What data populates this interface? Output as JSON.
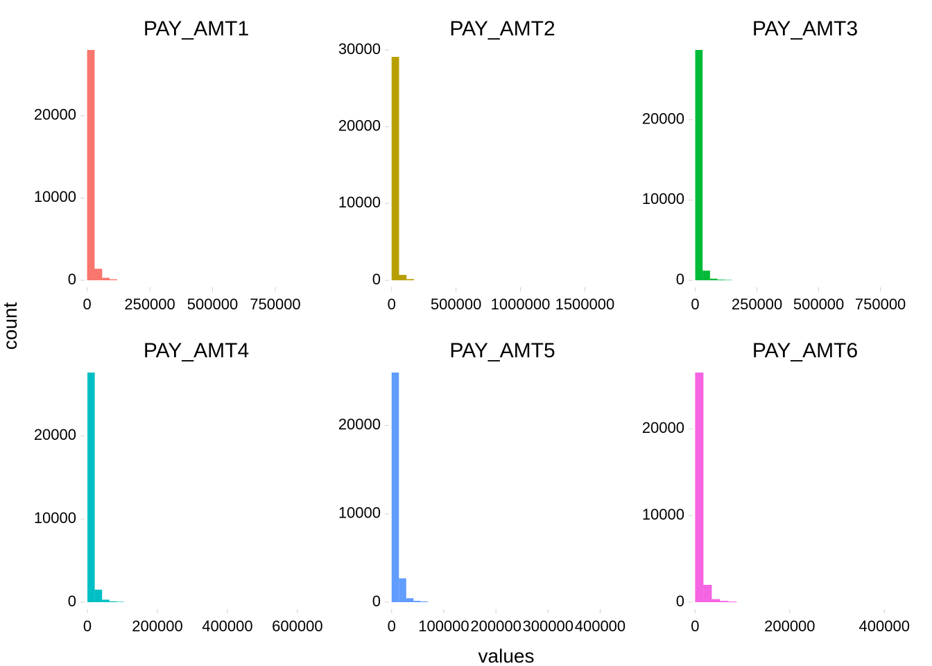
{
  "figure": {
    "xlabel": "values",
    "ylabel": "count"
  },
  "chart_data": [
    {
      "type": "bar",
      "title": "PAY_AMT1",
      "color": "#F8766D",
      "bin_width": 30000,
      "bins": [
        0,
        30000,
        60000,
        90000
      ],
      "counts": [
        28000,
        1400,
        300,
        120
      ],
      "xlim": [
        -10000,
        880000
      ],
      "ylim": [
        0,
        28000
      ],
      "xticks": [
        0,
        250000,
        500000,
        750000
      ],
      "xtick_labels": [
        "0",
        "250000",
        "500000",
        "750000"
      ],
      "yticks": [
        0,
        10000,
        20000
      ],
      "ytick_labels": [
        "0",
        "10000",
        "20000"
      ]
    },
    {
      "type": "bar",
      "title": "PAY_AMT2",
      "color": "#B79F00",
      "bin_width": 58000,
      "bins": [
        0,
        58000,
        116000
      ],
      "counts": [
        29100,
        700,
        150
      ],
      "xlim": [
        -20000,
        1740000
      ],
      "ylim": [
        0,
        30000
      ],
      "xticks": [
        0,
        500000,
        1000000,
        1500000
      ],
      "xtick_labels": [
        "0",
        "500000",
        "1000000",
        "1500000"
      ],
      "yticks": [
        0,
        10000,
        20000,
        30000
      ],
      "ytick_labels": [
        "0",
        "10000",
        "20000",
        "30000"
      ]
    },
    {
      "type": "bar",
      "title": "PAY_AMT3",
      "color": "#00BA38",
      "bin_width": 30000,
      "bins": [
        0,
        30000,
        60000,
        90000,
        120000
      ],
      "counts": [
        28700,
        1200,
        200,
        80,
        40
      ],
      "xlim": [
        -10000,
        900000
      ],
      "ylim": [
        0,
        28700
      ],
      "xticks": [
        0,
        250000,
        500000,
        750000
      ],
      "xtick_labels": [
        "0",
        "250000",
        "500000",
        "750000"
      ],
      "yticks": [
        0,
        10000,
        20000
      ],
      "ytick_labels": [
        "0",
        "10000",
        "20000"
      ]
    },
    {
      "type": "bar",
      "title": "PAY_AMT4",
      "color": "#00BFC4",
      "bin_width": 21000,
      "bins": [
        0,
        21000,
        42000,
        63000,
        84000
      ],
      "counts": [
        27600,
        1500,
        300,
        100,
        50
      ],
      "xlim": [
        -8000,
        630000
      ],
      "ylim": [
        0,
        27600
      ],
      "xticks": [
        0,
        200000,
        400000,
        600000
      ],
      "xtick_labels": [
        "0",
        "200000",
        "400000",
        "600000"
      ],
      "yticks": [
        0,
        10000,
        20000
      ],
      "ytick_labels": [
        "0",
        "10000",
        "20000"
      ]
    },
    {
      "type": "bar",
      "title": "PAY_AMT5",
      "color": "#619CFF",
      "bin_width": 14000,
      "bins": [
        0,
        14000,
        28000,
        42000,
        56000
      ],
      "counts": [
        26000,
        2700,
        450,
        150,
        80
      ],
      "xlim": [
        -5000,
        430000
      ],
      "ylim": [
        0,
        26000
      ],
      "xticks": [
        0,
        100000,
        200000,
        300000,
        400000
      ],
      "xtick_labels": [
        "0",
        "100000",
        "200000",
        "300000",
        "400000"
      ],
      "yticks": [
        0,
        10000,
        20000
      ],
      "ytick_labels": [
        "0",
        "10000",
        "20000"
      ]
    },
    {
      "type": "bar",
      "title": "PAY_AMT6",
      "color": "#F564E3",
      "bin_width": 17600,
      "bins": [
        0,
        17600,
        35200,
        52800,
        70400
      ],
      "counts": [
        26500,
        2000,
        350,
        150,
        80
      ],
      "xlim": [
        -5000,
        470000
      ],
      "ylim": [
        0,
        26500
      ],
      "xticks": [
        0,
        200000,
        400000
      ],
      "xtick_labels": [
        "0",
        "200000",
        "400000"
      ],
      "yticks": [
        0,
        10000,
        20000
      ],
      "ytick_labels": [
        "0",
        "10000",
        "20000"
      ]
    }
  ]
}
